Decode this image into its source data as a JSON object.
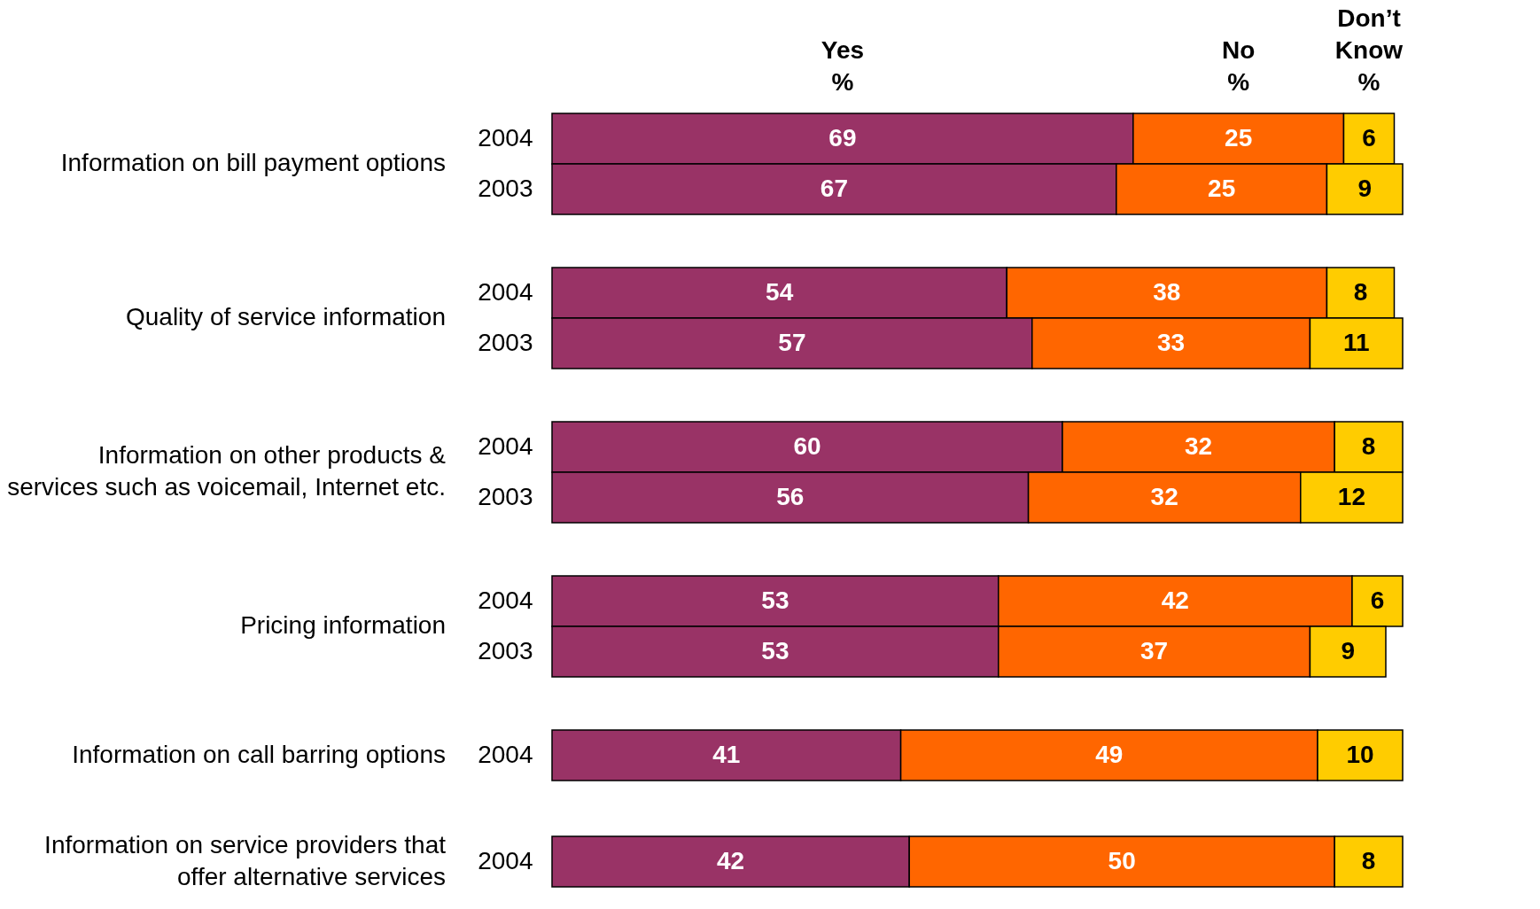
{
  "chart_data": [
    {
      "type": "bar",
      "orientation": "horizontal",
      "stacked": true,
      "data_labels": true,
      "legend": "top",
      "title": "Information on bill payment options",
      "categories": [
        "2004",
        "2003"
      ],
      "series": [
        {
          "name": "Yes %",
          "color": "#993366",
          "values": [
            69,
            67
          ]
        },
        {
          "name": "No %",
          "color": "#ff6600",
          "values": [
            25,
            25
          ]
        },
        {
          "name": "Don’t Know %",
          "color": "#ffcc00",
          "values": [
            6,
            9
          ]
        }
      ]
    },
    {
      "type": "bar",
      "orientation": "horizontal",
      "stacked": true,
      "data_labels": true,
      "title": "Quality of service information",
      "categories": [
        "2004",
        "2003"
      ],
      "series": [
        {
          "color": "#993366",
          "values": [
            54,
            57
          ]
        },
        {
          "color": "#ff6600",
          "values": [
            38,
            33
          ]
        },
        {
          "color": "#ffcc00",
          "values": [
            8,
            11
          ]
        }
      ]
    },
    {
      "type": "bar",
      "orientation": "horizontal",
      "stacked": true,
      "data_labels": true,
      "title": "Information on other products &\nservices such as voicemail, Internet etc.",
      "categories": [
        "2004",
        "2003"
      ],
      "series": [
        {
          "color": "#993366",
          "values": [
            60,
            56
          ]
        },
        {
          "color": "#ff6600",
          "values": [
            32,
            32
          ]
        },
        {
          "color": "#ffcc00",
          "values": [
            8,
            12
          ]
        }
      ]
    },
    {
      "type": "bar",
      "orientation": "horizontal",
      "stacked": true,
      "data_labels": true,
      "title": "Pricing information",
      "categories": [
        "2004",
        "2003"
      ],
      "series": [
        {
          "color": "#993366",
          "values": [
            53,
            53
          ]
        },
        {
          "color": "#ff6600",
          "values": [
            42,
            37
          ]
        },
        {
          "color": "#ffcc00",
          "values": [
            6,
            9
          ]
        }
      ]
    },
    {
      "type": "bar",
      "orientation": "horizontal",
      "stacked": true,
      "data_labels": true,
      "title": "Information on call barring options",
      "categories": [
        "2004"
      ],
      "series": [
        {
          "color": "#993366",
          "values": [
            41
          ]
        },
        {
          "color": "#ff6600",
          "values": [
            49
          ]
        },
        {
          "color": "#ffcc00",
          "values": [
            10
          ]
        }
      ]
    },
    {
      "type": "bar",
      "orientation": "horizontal",
      "stacked": true,
      "data_labels": true,
      "title": "Information on service providers that\noffer alternative services",
      "categories": [
        "2004"
      ],
      "series": [
        {
          "color": "#993366",
          "values": [
            42
          ]
        },
        {
          "color": "#ff6600",
          "values": [
            50
          ]
        },
        {
          "color": "#ffcc00",
          "values": [
            8
          ]
        }
      ]
    }
  ]
}
